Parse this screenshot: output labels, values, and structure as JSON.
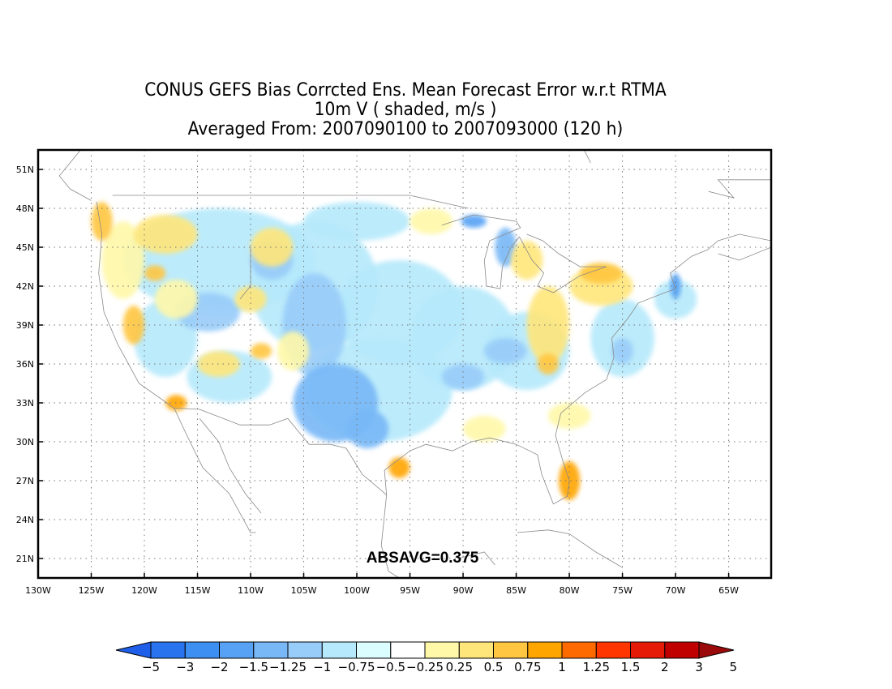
{
  "title": {
    "line1": "CONUS GEFS Bias Corrcted Ens. Mean Forecast Error w.r.t RTMA",
    "line2": "10m V ( shaded, m/s )",
    "line3": "Averaged From: 2007090100 to 2007093000 (120 h)"
  },
  "annotation": "ABSAVG=0.375",
  "map": {
    "lon_range": [
      -130,
      -61
    ],
    "lat_range": [
      19.5,
      52.5
    ],
    "lon_ticks": [
      -130,
      -125,
      -120,
      -115,
      -110,
      -105,
      -100,
      -95,
      -90,
      -85,
      -80,
      -75,
      -70,
      -65
    ],
    "lon_tick_labels": [
      "130W",
      "125W",
      "120W",
      "115W",
      "110W",
      "105W",
      "100W",
      "95W",
      "90W",
      "85W",
      "80W",
      "75W",
      "70W",
      "65W"
    ],
    "lat_ticks": [
      21,
      24,
      27,
      30,
      33,
      36,
      39,
      42,
      45,
      48,
      51
    ],
    "lat_tick_labels": [
      "21N",
      "24N",
      "27N",
      "30N",
      "33N",
      "36N",
      "39N",
      "42N",
      "45N",
      "48N",
      "51N"
    ],
    "grid": "dotted"
  },
  "colorbar": {
    "labels": [
      "-5",
      "-3",
      "-2",
      "-1.5",
      "-1.25",
      "-1",
      "-0.75",
      "-0.5",
      "-0.25",
      "0.25",
      "0.5",
      "0.75",
      "1",
      "1.25",
      "1.5",
      "2",
      "3",
      "5"
    ],
    "colors": [
      "#1e5ee8",
      "#2a73ee",
      "#3d8ff2",
      "#57a2f4",
      "#78b8f7",
      "#98ccf9",
      "#b5e9fb",
      "#dbfdff",
      "#ffffff",
      "#fff8a8",
      "#ffe67a",
      "#ffc641",
      "#ffa500",
      "#ff6a00",
      "#ff3600",
      "#e51b08",
      "#c00000",
      "#9b0a0a"
    ]
  }
}
